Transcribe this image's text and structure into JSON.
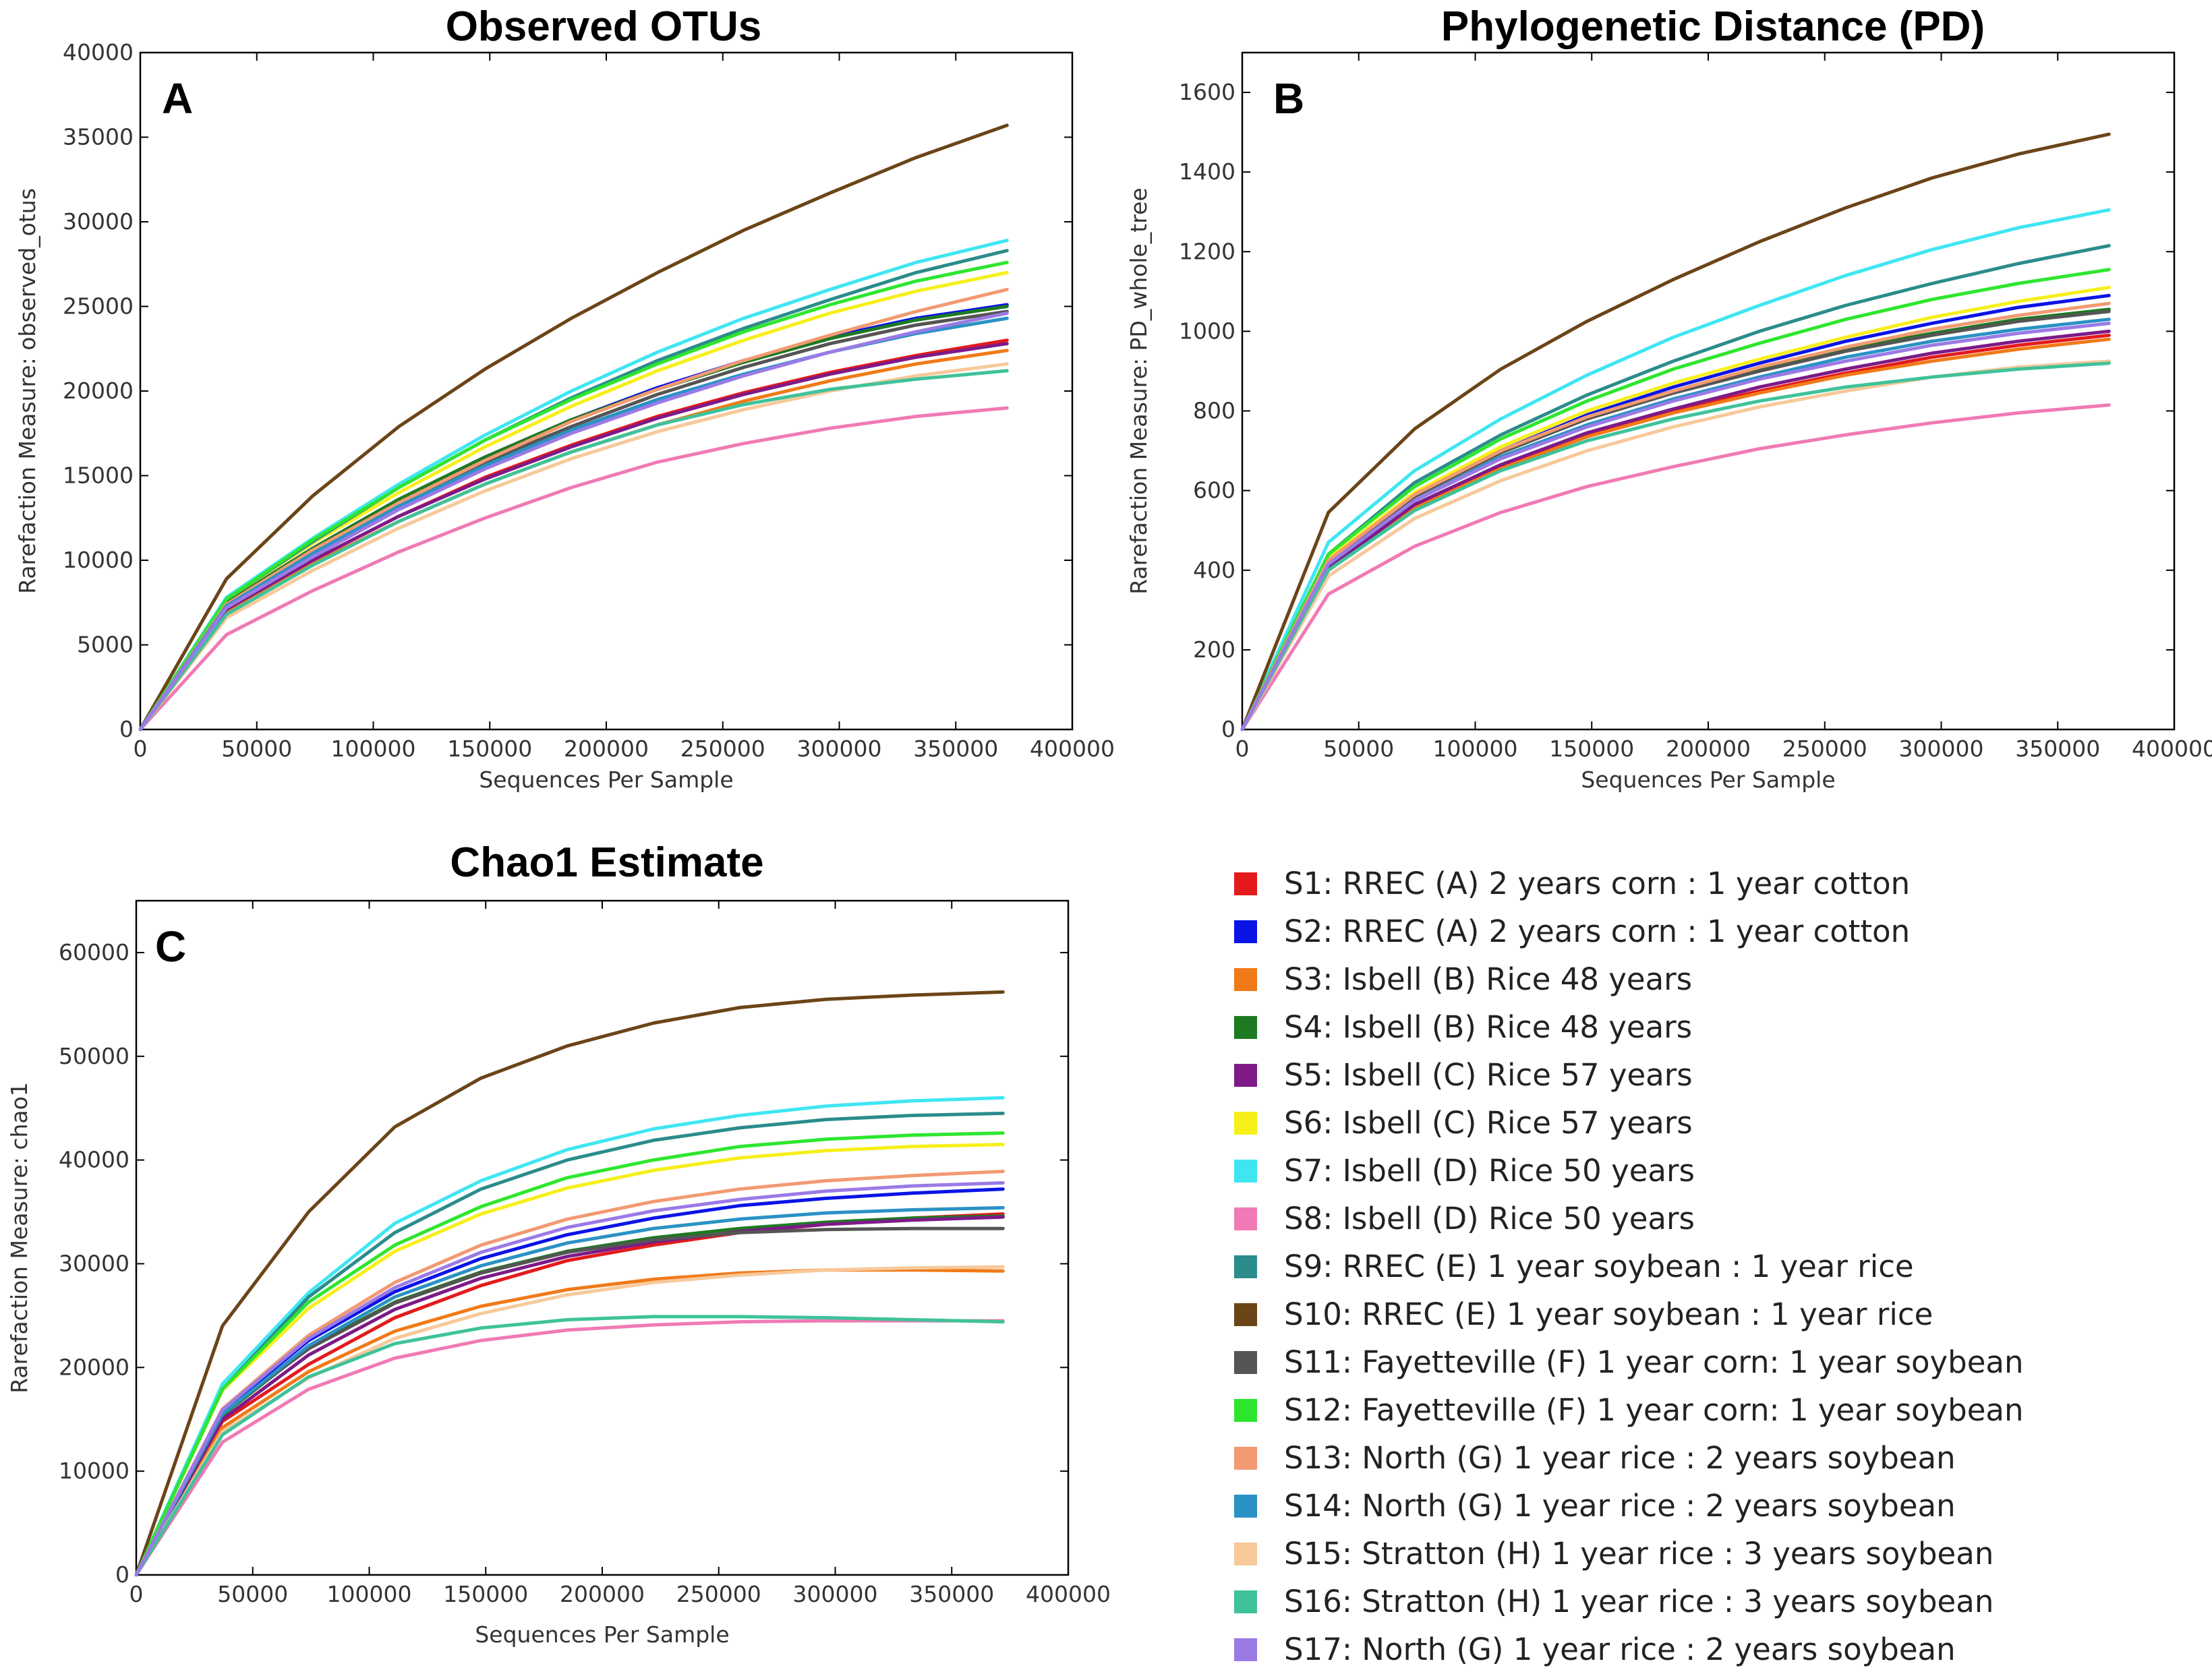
{
  "series_styles": [
    {
      "id": "S1",
      "color": "#e41a1c"
    },
    {
      "id": "S2",
      "color": "#0a14e6"
    },
    {
      "id": "S3",
      "color": "#f07a18"
    },
    {
      "id": "S4",
      "color": "#1d7a21"
    },
    {
      "id": "S5",
      "color": "#7d1a88"
    },
    {
      "id": "S6",
      "color": "#f7ef1a"
    },
    {
      "id": "S7",
      "color": "#3fe6f2"
    },
    {
      "id": "S8",
      "color": "#f07ab4"
    },
    {
      "id": "S9",
      "color": "#2b8c8c"
    },
    {
      "id": "S10",
      "color": "#6b4418"
    },
    {
      "id": "S11",
      "color": "#555555"
    },
    {
      "id": "S12",
      "color": "#2ee62e"
    },
    {
      "id": "S13",
      "color": "#f29a72"
    },
    {
      "id": "S14",
      "color": "#2a92c4"
    },
    {
      "id": "S15",
      "color": "#f7c99a"
    },
    {
      "id": "S16",
      "color": "#3fc29a"
    },
    {
      "id": "S17",
      "color": "#9b7ae6"
    }
  ],
  "legend": {
    "items": [
      {
        "label": "S1: RREC (A) 2 years corn : 1 year cotton"
      },
      {
        "label": "S2: RREC (A) 2 years corn : 1 year cotton"
      },
      {
        "label": "S3: Isbell (B) Rice 48 years"
      },
      {
        "label": "S4: Isbell (B) Rice 48 years"
      },
      {
        "label": "S5: Isbell (C) Rice 57 years"
      },
      {
        "label": "S6: Isbell (C) Rice 57 years"
      },
      {
        "label": "S7: Isbell (D) Rice 50 years"
      },
      {
        "label": "S8: Isbell (D) Rice 50 years"
      },
      {
        "label": "S9: RREC (E) 1 year soybean : 1 year rice"
      },
      {
        "label": "S10: RREC (E) 1 year soybean : 1 year rice"
      },
      {
        "label": "S11: Fayetteville (F) 1 year corn: 1 year soybean"
      },
      {
        "label": "S12: Fayetteville (F) 1 year corn: 1 year soybean"
      },
      {
        "label": "S13: North (G) 1 year rice : 2 years soybean"
      },
      {
        "label": "S14: North (G) 1 year rice : 2 years soybean"
      },
      {
        "label": "S15: Stratton (H) 1 year rice : 3 years soybean"
      },
      {
        "label": "S16: Stratton (H) 1 year rice : 3 years soybean"
      },
      {
        "label": "S17: North (G) 1 year rice : 2 years soybean"
      }
    ]
  },
  "chart_data": [
    {
      "type": "line",
      "panel": "A",
      "title": "Observed OTUs",
      "xlabel": "Sequences Per Sample",
      "ylabel": "Rarefaction Measure: observed_otus",
      "xlim": [
        0,
        400000
      ],
      "ylim": [
        0,
        40000
      ],
      "xticks": [
        0,
        50000,
        100000,
        150000,
        200000,
        250000,
        300000,
        350000,
        400000
      ],
      "yticks": [
        0,
        5000,
        10000,
        15000,
        20000,
        25000,
        30000,
        35000,
        40000
      ],
      "x": [
        0,
        37000,
        74000,
        111000,
        148000,
        185000,
        222000,
        259000,
        296000,
        333000,
        372000
      ],
      "series": [
        {
          "name": "S1",
          "values": [
            0,
            7100,
            10000,
            12600,
            14900,
            16800,
            18500,
            19900,
            21100,
            22100,
            23000
          ]
        },
        {
          "name": "S2",
          "values": [
            0,
            7500,
            10700,
            13600,
            16100,
            18300,
            20200,
            21800,
            23200,
            24300,
            25100
          ]
        },
        {
          "name": "S3",
          "values": [
            0,
            7000,
            9800,
            12300,
            14500,
            16400,
            18000,
            19400,
            20600,
            21600,
            22400
          ]
        },
        {
          "name": "S4",
          "values": [
            0,
            7500,
            10700,
            13600,
            16100,
            18300,
            20100,
            21700,
            23100,
            24200,
            25000
          ]
        },
        {
          "name": "S5",
          "values": [
            0,
            7100,
            10000,
            12600,
            14800,
            16700,
            18400,
            19800,
            21000,
            22000,
            22800
          ]
        },
        {
          "name": "S6",
          "values": [
            0,
            7700,
            11000,
            14000,
            16700,
            19100,
            21200,
            23000,
            24600,
            25900,
            27000
          ]
        },
        {
          "name": "S7",
          "values": [
            0,
            7800,
            11300,
            14500,
            17400,
            20000,
            22300,
            24300,
            26000,
            27600,
            28900
          ]
        },
        {
          "name": "S8",
          "values": [
            0,
            5600,
            8200,
            10500,
            12500,
            14300,
            15800,
            16900,
            17800,
            18500,
            19000
          ]
        },
        {
          "name": "S9",
          "values": [
            0,
            7700,
            11100,
            14300,
            17100,
            19600,
            21800,
            23700,
            25400,
            27000,
            28300
          ]
        },
        {
          "name": "S10",
          "values": [
            0,
            8900,
            13800,
            17900,
            21300,
            24300,
            27000,
            29500,
            31700,
            33800,
            35700
          ]
        },
        {
          "name": "S11",
          "values": [
            0,
            7400,
            10500,
            13300,
            15800,
            17900,
            19800,
            21400,
            22800,
            23900,
            24700
          ]
        },
        {
          "name": "S12",
          "values": [
            0,
            7700,
            11200,
            14300,
            17100,
            19500,
            21600,
            23500,
            25100,
            26500,
            27600
          ]
        },
        {
          "name": "S13",
          "values": [
            0,
            7400,
            10600,
            13400,
            15900,
            18200,
            20100,
            21800,
            23300,
            24700,
            26000
          ]
        },
        {
          "name": "S14",
          "values": [
            0,
            7300,
            10400,
            13200,
            15600,
            17700,
            19500,
            21000,
            22300,
            23400,
            24300
          ]
        },
        {
          "name": "S15",
          "values": [
            0,
            6600,
            9400,
            11900,
            14100,
            16000,
            17600,
            18900,
            20000,
            20900,
            21600
          ]
        },
        {
          "name": "S16",
          "values": [
            0,
            6800,
            9700,
            12300,
            14500,
            16400,
            18000,
            19200,
            20100,
            20700,
            21200
          ]
        },
        {
          "name": "S17",
          "values": [
            0,
            7200,
            10200,
            13000,
            15400,
            17500,
            19300,
            20900,
            22300,
            23500,
            24600
          ]
        }
      ]
    },
    {
      "type": "line",
      "panel": "B",
      "title": "Phylogenetic Distance (PD)",
      "xlabel": "Sequences Per Sample",
      "ylabel": "Rarefaction Measure: PD_whole_tree",
      "xlim": [
        0,
        400000
      ],
      "ylim": [
        0,
        1700
      ],
      "xticks": [
        0,
        50000,
        100000,
        150000,
        200000,
        250000,
        300000,
        350000,
        400000
      ],
      "yticks": [
        0,
        200,
        400,
        600,
        800,
        1000,
        1200,
        1400,
        1600
      ],
      "x": [
        0,
        37000,
        74000,
        111000,
        148000,
        185000,
        222000,
        259000,
        296000,
        333000,
        372000
      ],
      "series": [
        {
          "name": "S1",
          "values": [
            0,
            400,
            560,
            660,
            740,
            800,
            850,
            895,
            935,
            965,
            990
          ]
        },
        {
          "name": "S2",
          "values": [
            0,
            425,
            590,
            700,
            790,
            860,
            920,
            975,
            1020,
            1060,
            1090
          ]
        },
        {
          "name": "S3",
          "values": [
            0,
            400,
            555,
            655,
            735,
            795,
            845,
            890,
            925,
            955,
            980
          ]
        },
        {
          "name": "S4",
          "values": [
            0,
            425,
            590,
            700,
            785,
            850,
            905,
            955,
            995,
            1030,
            1055
          ]
        },
        {
          "name": "S5",
          "values": [
            0,
            405,
            565,
            665,
            745,
            805,
            860,
            905,
            945,
            975,
            1000
          ]
        },
        {
          "name": "S6",
          "values": [
            0,
            430,
            595,
            710,
            800,
            870,
            930,
            985,
            1035,
            1075,
            1110
          ]
        },
        {
          "name": "S7",
          "values": [
            0,
            470,
            650,
            780,
            890,
            985,
            1065,
            1140,
            1205,
            1260,
            1305
          ]
        },
        {
          "name": "S8",
          "values": [
            0,
            340,
            460,
            545,
            610,
            660,
            705,
            740,
            770,
            795,
            815
          ]
        },
        {
          "name": "S9",
          "values": [
            0,
            440,
            620,
            740,
            840,
            925,
            1000,
            1065,
            1120,
            1170,
            1215
          ]
        },
        {
          "name": "S10",
          "values": [
            0,
            545,
            755,
            905,
            1025,
            1130,
            1225,
            1310,
            1385,
            1445,
            1495
          ]
        },
        {
          "name": "S11",
          "values": [
            0,
            420,
            585,
            695,
            780,
            845,
            900,
            950,
            990,
            1025,
            1050
          ]
        },
        {
          "name": "S12",
          "values": [
            0,
            440,
            610,
            730,
            825,
            905,
            970,
            1030,
            1080,
            1120,
            1155
          ]
        },
        {
          "name": "S13",
          "values": [
            0,
            425,
            590,
            700,
            785,
            850,
            910,
            960,
            1005,
            1040,
            1070
          ]
        },
        {
          "name": "S14",
          "values": [
            0,
            415,
            575,
            685,
            765,
            830,
            885,
            935,
            975,
            1005,
            1030
          ]
        },
        {
          "name": "S15",
          "values": [
            0,
            385,
            530,
            625,
            700,
            760,
            810,
            850,
            885,
            910,
            925
          ]
        },
        {
          "name": "S16",
          "values": [
            0,
            400,
            550,
            650,
            725,
            780,
            825,
            860,
            885,
            905,
            920
          ]
        },
        {
          "name": "S17",
          "values": [
            0,
            415,
            575,
            680,
            760,
            825,
            880,
            925,
            965,
            995,
            1020
          ]
        }
      ]
    },
    {
      "type": "line",
      "panel": "C",
      "title": "Chao1 Estimate",
      "xlabel": "Sequences Per Sample",
      "ylabel": "Rarefaction Measure: chao1",
      "xlim": [
        0,
        400000
      ],
      "ylim": [
        0,
        65000
      ],
      "xticks": [
        0,
        50000,
        100000,
        150000,
        200000,
        250000,
        300000,
        350000,
        400000
      ],
      "yticks": [
        0,
        10000,
        20000,
        30000,
        40000,
        50000,
        60000
      ],
      "x": [
        0,
        37000,
        74000,
        111000,
        148000,
        185000,
        222000,
        259000,
        296000,
        333000,
        372000
      ],
      "series": [
        {
          "name": "S1",
          "values": [
            0,
            14800,
            20300,
            24800,
            27900,
            30300,
            31800,
            33000,
            33800,
            34400,
            34800
          ]
        },
        {
          "name": "S2",
          "values": [
            0,
            15800,
            22600,
            27300,
            30500,
            32800,
            34400,
            35600,
            36300,
            36800,
            37200
          ]
        },
        {
          "name": "S3",
          "values": [
            0,
            14200,
            19600,
            23500,
            25900,
            27500,
            28500,
            29100,
            29400,
            29400,
            29300
          ]
        },
        {
          "name": "S4",
          "values": [
            0,
            15400,
            21900,
            26300,
            29200,
            31200,
            32500,
            33400,
            34000,
            34400,
            34600
          ]
        },
        {
          "name": "S5",
          "values": [
            0,
            15000,
            21200,
            25600,
            28600,
            30700,
            32100,
            33100,
            33800,
            34200,
            34500
          ]
        },
        {
          "name": "S6",
          "values": [
            0,
            17800,
            25700,
            31200,
            34800,
            37300,
            39000,
            40200,
            40900,
            41300,
            41500
          ]
        },
        {
          "name": "S7",
          "values": [
            0,
            18400,
            27200,
            33900,
            38000,
            41000,
            43000,
            44300,
            45200,
            45700,
            46000
          ]
        },
        {
          "name": "S8",
          "values": [
            0,
            12800,
            17900,
            20900,
            22600,
            23600,
            24100,
            24400,
            24500,
            24500,
            24500
          ]
        },
        {
          "name": "S9",
          "values": [
            0,
            17900,
            26800,
            33000,
            37200,
            40000,
            41900,
            43100,
            43900,
            44300,
            44500
          ]
        },
        {
          "name": "S10",
          "values": [
            0,
            24000,
            35000,
            43200,
            47900,
            51000,
            53200,
            54700,
            55500,
            55900,
            56200
          ]
        },
        {
          "name": "S11",
          "values": [
            0,
            15600,
            21800,
            26200,
            29100,
            31100,
            32300,
            33000,
            33300,
            33400,
            33400
          ]
        },
        {
          "name": "S12",
          "values": [
            0,
            17900,
            26300,
            31800,
            35500,
            38300,
            40000,
            41300,
            42000,
            42400,
            42600
          ]
        },
        {
          "name": "S13",
          "values": [
            0,
            16000,
            23100,
            28200,
            31800,
            34300,
            36000,
            37200,
            38000,
            38500,
            38900
          ]
        },
        {
          "name": "S14",
          "values": [
            0,
            15500,
            22100,
            26800,
            29800,
            32000,
            33400,
            34300,
            34900,
            35200,
            35400
          ]
        },
        {
          "name": "S15",
          "values": [
            0,
            13800,
            19000,
            22800,
            25200,
            27000,
            28200,
            28900,
            29400,
            29600,
            29700
          ]
        },
        {
          "name": "S16",
          "values": [
            0,
            13500,
            19100,
            22300,
            23800,
            24600,
            24900,
            24900,
            24800,
            24600,
            24400
          ]
        },
        {
          "name": "S17",
          "values": [
            0,
            15900,
            22800,
            27700,
            31100,
            33500,
            35100,
            36200,
            37000,
            37500,
            37800
          ]
        }
      ]
    }
  ]
}
